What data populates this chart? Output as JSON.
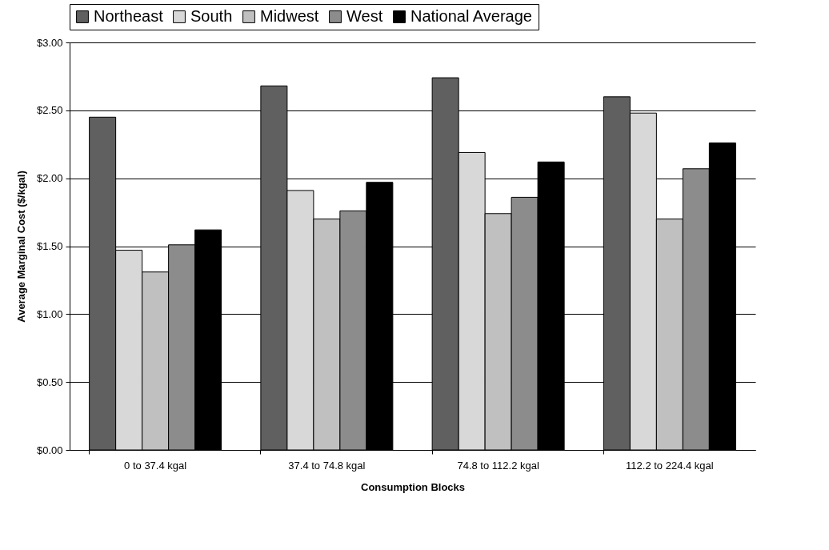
{
  "chart_data": {
    "type": "bar",
    "xlabel": "Consumption Blocks",
    "ylabel": "Average Marginal Cost ($/kgal)",
    "categories": [
      "0 to 37.4 kgal",
      "37.4 to 74.8 kgal",
      "74.8 to 112.2 kgal",
      "112.2 to 224.4 kgal"
    ],
    "series": [
      {
        "name": "Northeast",
        "color": "#606060",
        "values": [
          2.45,
          2.68,
          2.74,
          2.6
        ]
      },
      {
        "name": "South",
        "color": "#d8d8d8",
        "values": [
          1.47,
          1.91,
          2.19,
          2.48
        ]
      },
      {
        "name": "Midwest",
        "color": "#c0c0c0",
        "values": [
          1.31,
          1.7,
          1.74,
          1.7
        ]
      },
      {
        "name": "West",
        "color": "#8c8c8c",
        "values": [
          1.51,
          1.76,
          1.86,
          2.07
        ]
      },
      {
        "name": "National Average",
        "color": "#000000",
        "values": [
          1.62,
          1.97,
          2.12,
          2.26
        ]
      }
    ],
    "ylim": [
      0,
      3
    ],
    "yticks": [
      {
        "value": 0,
        "label": "$0.00"
      },
      {
        "value": 0.5,
        "label": "$0.50"
      },
      {
        "value": 1,
        "label": "$1.00"
      },
      {
        "value": 1.5,
        "label": "$1.50"
      },
      {
        "value": 2,
        "label": "$2.00"
      },
      {
        "value": 2.5,
        "label": "$2.50"
      },
      {
        "value": 3,
        "label": "$3.00"
      }
    ],
    "grid": "y",
    "legend": "top"
  }
}
